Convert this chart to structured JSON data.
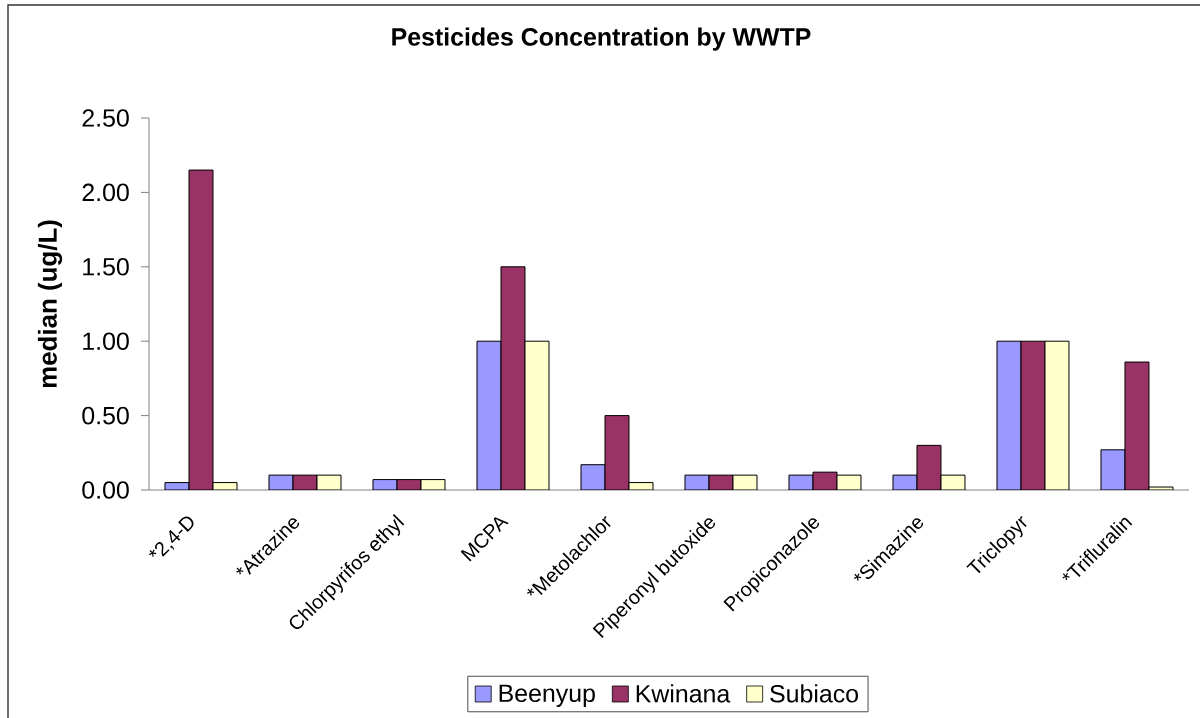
{
  "chart_data": {
    "type": "bar",
    "title": "Pesticides Concentration by WWTP",
    "ylabel": "median (ug/L)",
    "categories": [
      "*2,4-D",
      "*Atrazine",
      "Chlorpyrifos ethyl",
      "MCPA",
      "*Metolachlor",
      "Piperonyl butoxide",
      "Propiconazole",
      "*Simazine",
      "Triclopyr",
      "*Trifluralin"
    ],
    "series": [
      {
        "name": "Beenyup",
        "color": "#9999ff",
        "values": [
          0.05,
          0.1,
          0.07,
          1.0,
          0.17,
          0.1,
          0.1,
          0.1,
          1.0,
          0.27
        ]
      },
      {
        "name": "Kwinana",
        "color": "#993366",
        "values": [
          2.15,
          0.1,
          0.07,
          1.5,
          0.5,
          0.1,
          0.12,
          0.3,
          1.0,
          0.86
        ]
      },
      {
        "name": "Subiaco",
        "color": "#ffffcc",
        "values": [
          0.05,
          0.1,
          0.07,
          1.0,
          0.05,
          0.1,
          0.1,
          0.1,
          1.0,
          0.02
        ]
      }
    ],
    "ylim": [
      0,
      2.5
    ],
    "yticks": [
      {
        "value": 0,
        "label": "0.00"
      },
      {
        "value": 0.5,
        "label": "0.50"
      },
      {
        "value": 1.0,
        "label": "1.00"
      },
      {
        "value": 1.5,
        "label": "1.50"
      },
      {
        "value": 2.0,
        "label": "2.00"
      },
      {
        "value": 2.5,
        "label": "2.50"
      }
    ],
    "legend": "bottom"
  }
}
